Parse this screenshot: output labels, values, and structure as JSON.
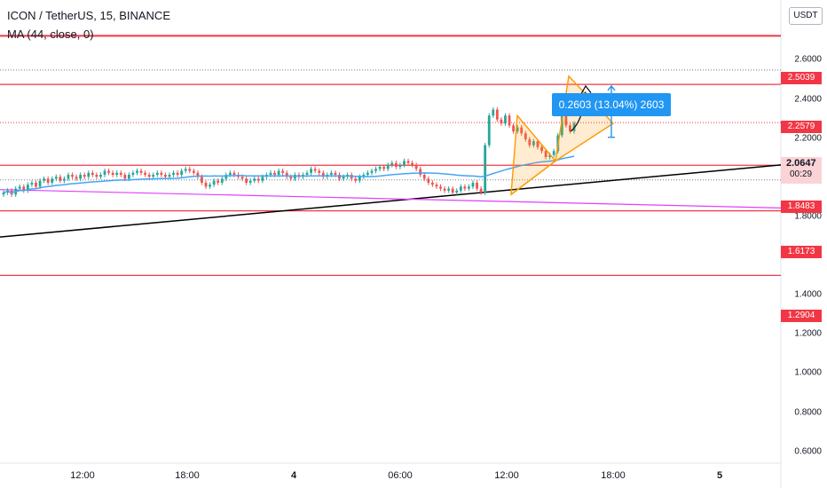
{
  "header": {
    "title": "ICON / TetherUS, 15, BINANCE",
    "indicator": "MA (44, close, 0)",
    "currency": "USDT"
  },
  "chart_data": {
    "type": "candlestick",
    "title": "ICON / TetherUS, 15, BINANCE",
    "indicator": "MA (44, close, 0)",
    "ylim": [
      0.55,
      2.8
    ],
    "y_ticks": [
      "2.6000",
      "2.4000",
      "2.2000",
      "1.8000",
      "1.4000",
      "1.2000",
      "1.0000",
      "0.8000",
      "0.6000"
    ],
    "x_ticks": [
      "12:00",
      "18:00",
      "4",
      "06:00",
      "12:00",
      "18:00",
      "5"
    ],
    "bold_x_ticks": [
      "4",
      "5"
    ],
    "horizontal_levels": [
      {
        "label": "2.5039",
        "value": 2.5039,
        "color": "#f23645"
      },
      {
        "label": "2.2579",
        "value": 2.2579,
        "color": "#f23645"
      },
      {
        "label": "1.8483",
        "value": 1.8483,
        "color": "#f23645"
      },
      {
        "label": "1.6173",
        "value": 1.6173,
        "color": "#f23645"
      },
      {
        "label": "1.2904",
        "value": 1.2904,
        "color": "#f23645"
      }
    ],
    "current_price": {
      "label": "2.0647",
      "value": 2.0647,
      "countdown": "00:29"
    },
    "measurement": {
      "text": "0.2603 (13.04%) 2603"
    },
    "series_colors": {
      "up": "#26a69a",
      "down": "#ef5350",
      "ma": "#42a5f5",
      "trendline": "#000000",
      "downtrend": "#e040fb",
      "pattern": "#ff9800"
    },
    "candles_close": [
      1.71,
      1.72,
      1.7,
      1.73,
      1.74,
      1.72,
      1.75,
      1.76,
      1.74,
      1.77,
      1.78,
      1.76,
      1.78,
      1.79,
      1.77,
      1.78,
      1.8,
      1.79,
      1.78,
      1.8,
      1.79,
      1.81,
      1.8,
      1.79,
      1.8,
      1.82,
      1.81,
      1.8,
      1.81,
      1.8,
      1.78,
      1.8,
      1.81,
      1.82,
      1.81,
      1.8,
      1.79,
      1.8,
      1.81,
      1.8,
      1.79,
      1.8,
      1.81,
      1.8,
      1.82,
      1.83,
      1.82,
      1.81,
      1.79,
      1.76,
      1.74,
      1.75,
      1.77,
      1.76,
      1.78,
      1.8,
      1.81,
      1.8,
      1.79,
      1.78,
      1.76,
      1.77,
      1.78,
      1.77,
      1.79,
      1.8,
      1.81,
      1.8,
      1.82,
      1.81,
      1.79,
      1.78,
      1.8,
      1.79,
      1.8,
      1.81,
      1.83,
      1.82,
      1.81,
      1.79,
      1.8,
      1.81,
      1.8,
      1.78,
      1.79,
      1.8,
      1.78,
      1.77,
      1.79,
      1.8,
      1.81,
      1.82,
      1.83,
      1.84,
      1.83,
      1.85,
      1.86,
      1.84,
      1.85,
      1.87,
      1.86,
      1.85,
      1.83,
      1.8,
      1.78,
      1.76,
      1.75,
      1.74,
      1.73,
      1.72,
      1.73,
      1.71,
      1.72,
      1.74,
      1.73,
      1.74,
      1.76,
      1.73,
      1.71,
      1.95,
      2.1,
      2.13,
      2.08,
      2.06,
      2.1,
      2.05,
      2.02,
      2.04,
      2.01,
      1.98,
      1.95,
      1.97,
      1.94,
      1.92,
      1.89,
      1.9,
      1.92,
      2.0,
      2.1,
      2.05,
      2.02,
      2.06
    ]
  }
}
